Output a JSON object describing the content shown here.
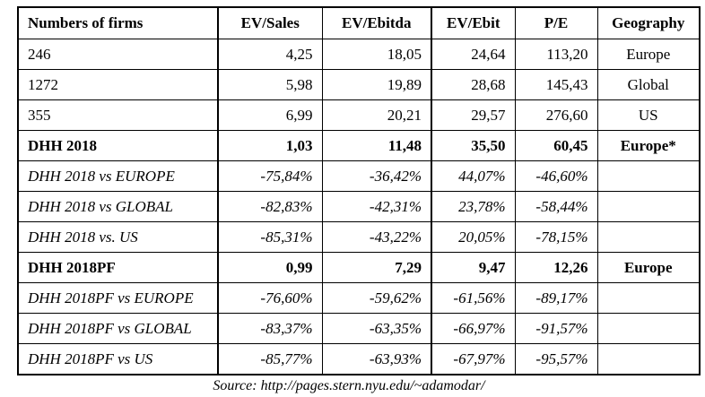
{
  "colors": {
    "text": "#000000",
    "border": "#000000",
    "background": "#ffffff"
  },
  "table": {
    "header": [
      "Numbers of firms",
      "EV/Sales",
      "EV/Ebitda",
      "EV/Ebit",
      "P/E",
      "Geography"
    ],
    "rows": [
      {
        "label": "246",
        "values": [
          "4,25",
          "18,05",
          "24,64",
          "113,20"
        ],
        "geo": "Europe",
        "style": "normal"
      },
      {
        "label": "1272",
        "values": [
          "5,98",
          "19,89",
          "28,68",
          "145,43"
        ],
        "geo": "Global",
        "style": "normal"
      },
      {
        "label": "355",
        "values": [
          "6,99",
          "20,21",
          "29,57",
          "276,60"
        ],
        "geo": "US",
        "style": "normal"
      },
      {
        "label": "DHH 2018",
        "values": [
          "1,03",
          "11,48",
          "35,50",
          "60,45"
        ],
        "geo": "Europe*",
        "style": "bold"
      },
      {
        "label": "DHH 2018 vs EUROPE",
        "values": [
          "-75,84%",
          "-36,42%",
          "44,07%",
          "-46,60%"
        ],
        "geo": "",
        "style": "italic"
      },
      {
        "label": "DHH 2018 vs GLOBAL",
        "values": [
          "-82,83%",
          "-42,31%",
          "23,78%",
          "-58,44%"
        ],
        "geo": "",
        "style": "italic"
      },
      {
        "label": "DHH 2018 vs. US",
        "values": [
          "-85,31%",
          "-43,22%",
          "20,05%",
          "-78,15%"
        ],
        "geo": "",
        "style": "italic"
      },
      {
        "label": "DHH 2018PF",
        "values": [
          "0,99",
          "7,29",
          "9,47",
          "12,26"
        ],
        "geo": "Europe",
        "style": "bold"
      },
      {
        "label": "DHH 2018PF vs EUROPE",
        "values": [
          "-76,60%",
          "-59,62%",
          "-61,56%",
          "-89,17%"
        ],
        "geo": "",
        "style": "italic"
      },
      {
        "label": "DHH 2018PF vs GLOBAL",
        "values": [
          "-83,37%",
          "-63,35%",
          "-66,97%",
          "-91,57%"
        ],
        "geo": "",
        "style": "italic"
      },
      {
        "label": "DHH 2018PF vs US",
        "values": [
          "-85,77%",
          "-63,93%",
          "-67,97%",
          "-95,57%"
        ],
        "geo": "",
        "style": "italic"
      }
    ]
  },
  "footer": {
    "source": "Source: http://pages.stern.nyu.edu/~adamodar/"
  }
}
